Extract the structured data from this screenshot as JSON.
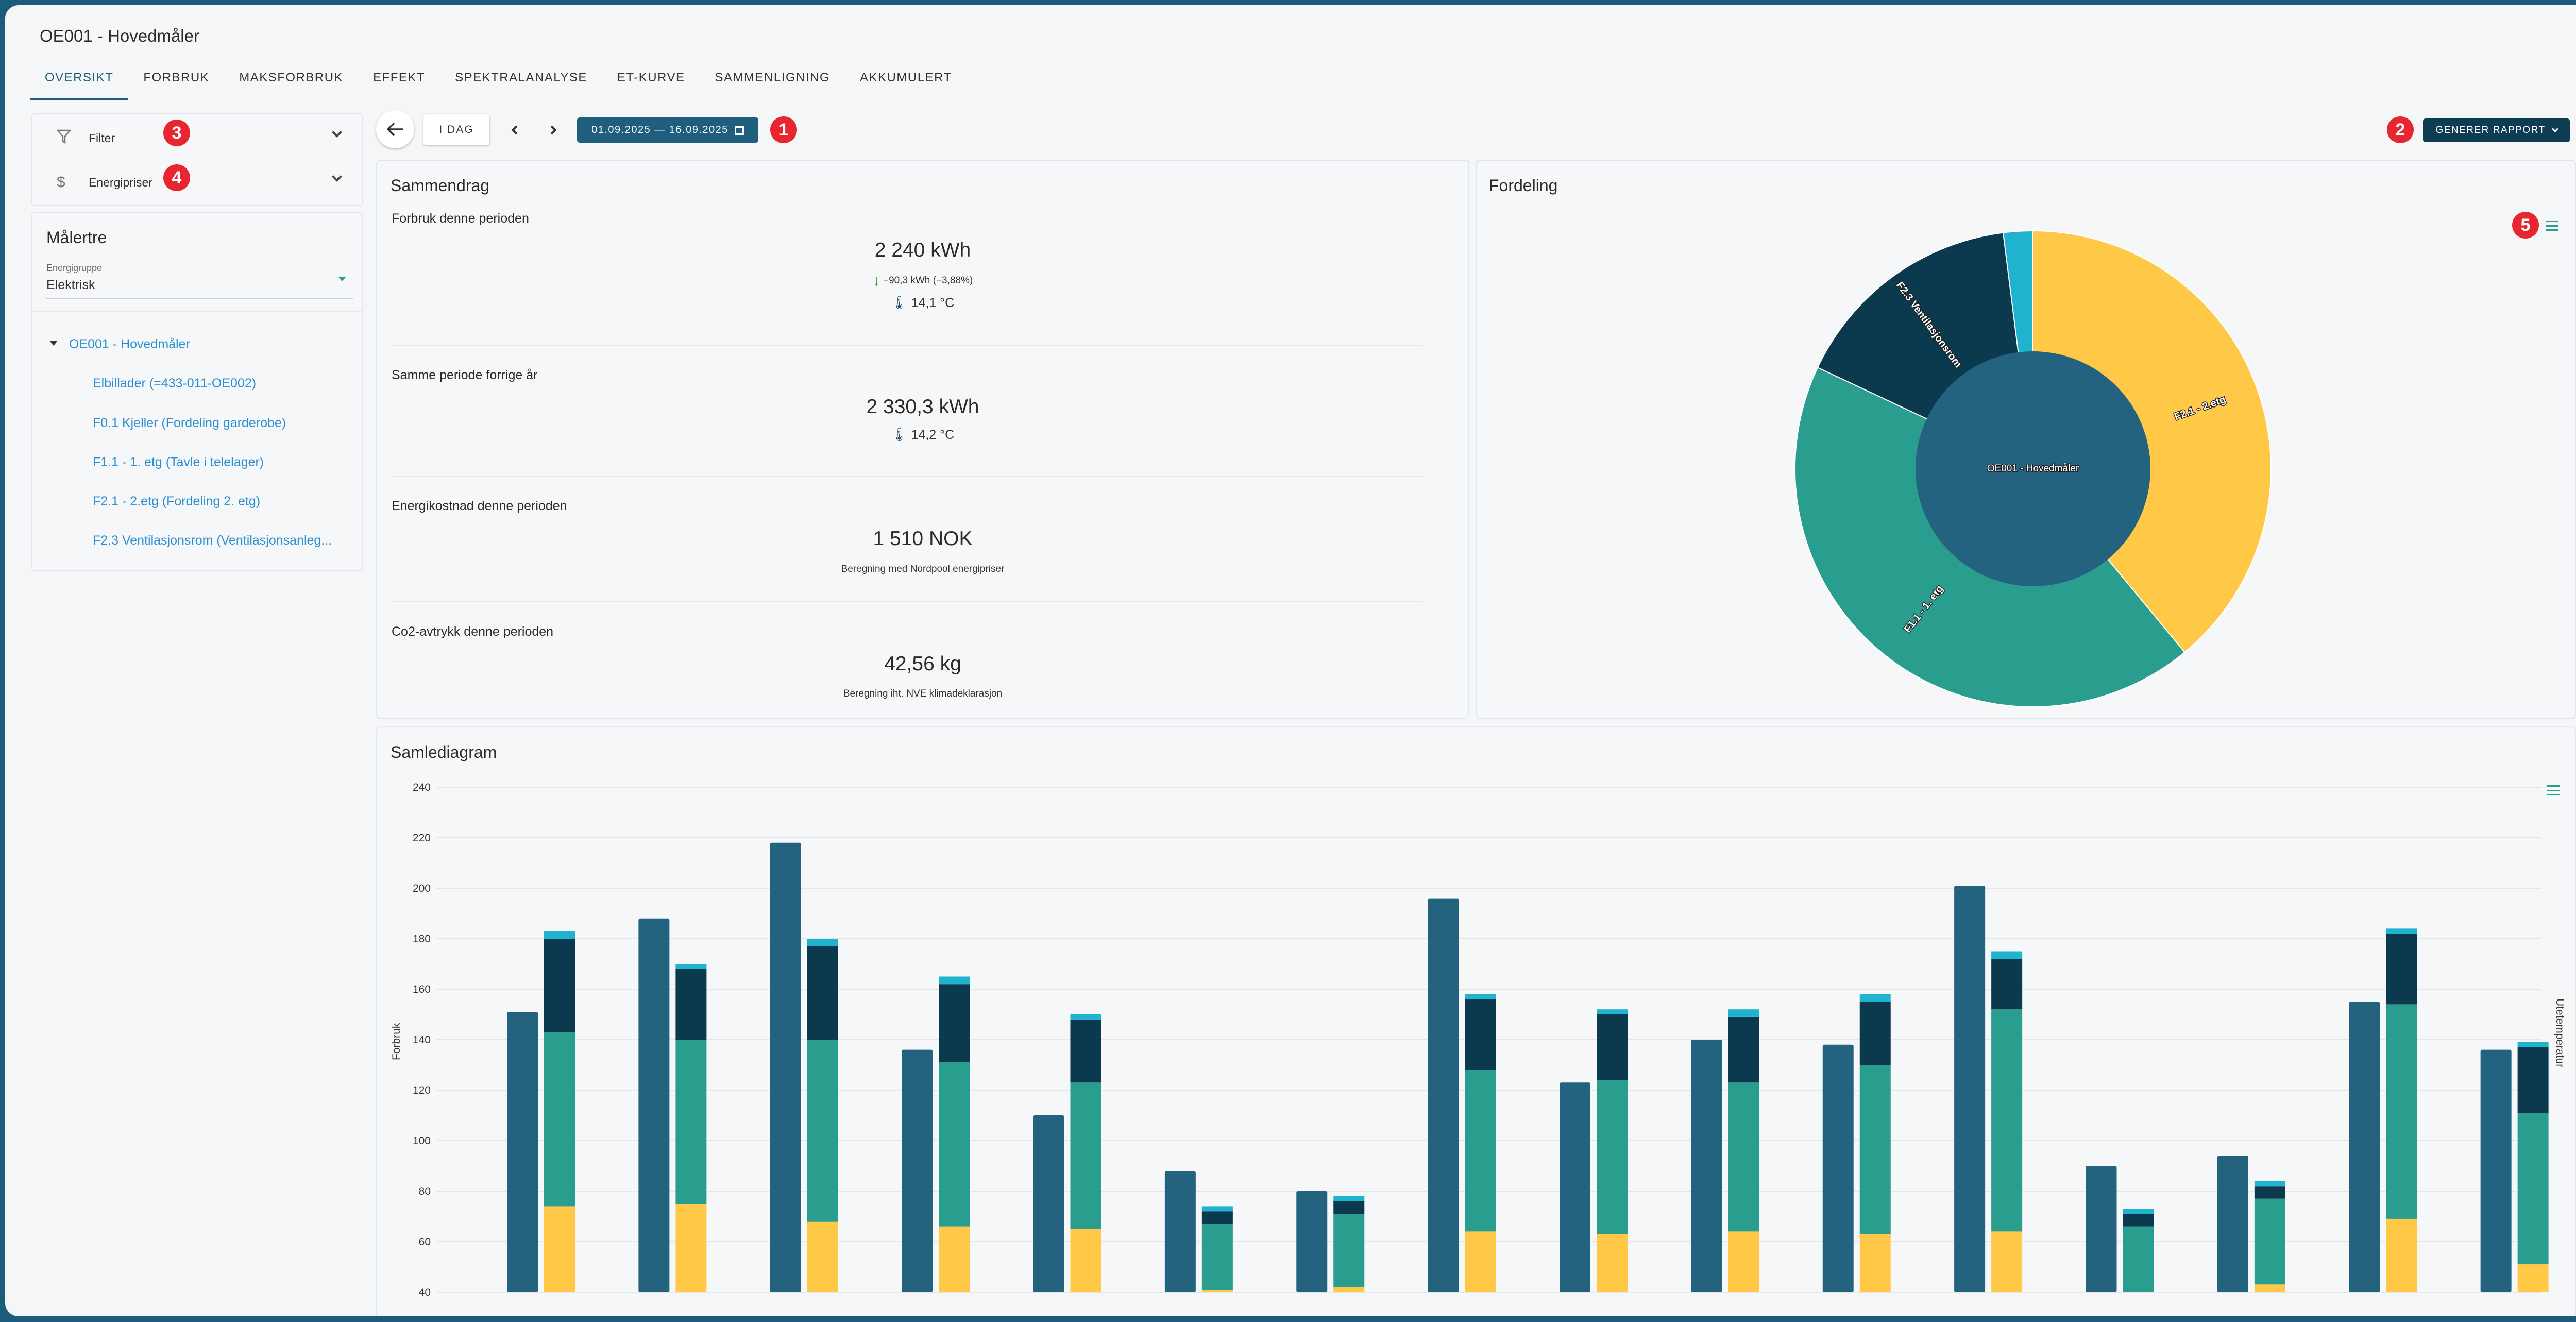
{
  "header": {
    "title": "OE001 - Hovedmåler"
  },
  "tabs": [
    "Oversikt",
    "Forbruk",
    "Maksforbruk",
    "Effekt",
    "Spektralanalyse",
    "ET-kurve",
    "Sammenligning",
    "Akkumulert"
  ],
  "sidebar": {
    "filter_label": "Filter",
    "energy_label": "Energipriser",
    "tree_title": "Målertre",
    "energy_group_label": "Energigruppe",
    "energy_group_value": "Elektrisk",
    "tree_root": "OE001 - Hovedmåler",
    "tree_children": [
      "Elbillader (=433-011-OE002)",
      "F0.1 Kjeller (Fordeling garderobe)",
      "F1.1 - 1. etg (Tavle i telelager)",
      "F2.1 - 2.etg (Fordeling 2. etg)",
      "F2.3 Ventilasjonsrom (Ventilasjonsanleg..."
    ]
  },
  "toolbar": {
    "today_label": "I DAG",
    "date_range": "01.09.2025 — 16.09.2025",
    "report_label": "GENERER RAPPORT"
  },
  "badges": [
    "1",
    "2",
    "3",
    "4",
    "5"
  ],
  "summary": {
    "title": "Sammendrag",
    "consumption_label": "Forbruk denne perioden",
    "consumption_value": "2 240 kWh",
    "consumption_change": "−90,3 kWh (−3,88%)",
    "consumption_temp": "14,1 °C",
    "last_year_label": "Samme periode forrige år",
    "last_year_value": "2 330,3 kWh",
    "last_year_temp": "14,2 °C",
    "cost_label": "Energikostnad denne perioden",
    "cost_value": "1 510 NOK",
    "cost_note": "Beregning med Nordpool energipriser",
    "co2_label": "Co2-avtrykk denne perioden",
    "co2_value": "42,56 kg",
    "co2_note": "Beregning iht. NVE klimadeklarasjon"
  },
  "distribution": {
    "title": "Fordeling"
  },
  "combined": {
    "title": "Samlediagram"
  },
  "colors": {
    "dark_blue": "#246380",
    "navy": "#0b3a4e",
    "teal": "#2a9e8e",
    "yellow": "#ffc847",
    "cyan": "#1fb3cf"
  },
  "chart_data": [
    {
      "type": "pie",
      "center_label": "OE001 - Hovedmåler",
      "slices": [
        {
          "label": "F2.1 - 2.etg",
          "value": 0.39,
          "color": "#ffc847"
        },
        {
          "label": "F1.1 - 1. etg",
          "value": 0.43,
          "color": "#2a9e8e"
        },
        {
          "label": "F2.3 Ventilasjonsrom",
          "value": 0.16,
          "color": "#0b3a4e"
        },
        {
          "label": "",
          "value": 0.02,
          "color": "#1fb3cf"
        }
      ]
    },
    {
      "type": "bar",
      "title": "Samlediagram",
      "ylabel": "Forbruk",
      "y2label": "Utetemperatur",
      "ylim": [
        40,
        240
      ],
      "yticks": [
        240,
        220,
        200,
        180,
        160,
        140,
        120,
        100,
        80,
        60,
        40
      ],
      "days": 16,
      "total": [
        151,
        188,
        218,
        136,
        110,
        88,
        80,
        196,
        123,
        140,
        138,
        201,
        90,
        94,
        155,
        136
      ],
      "stack_yellow": [
        74,
        75,
        68,
        66,
        65,
        41,
        42,
        64,
        63,
        64,
        63,
        64,
        40,
        43,
        69,
        51
      ],
      "stack_teal": [
        143,
        140,
        140,
        131,
        123,
        67,
        71,
        128,
        124,
        123,
        130,
        152,
        66,
        77,
        154,
        111
      ],
      "stack_navy": [
        180,
        168,
        177,
        162,
        148,
        72,
        76,
        156,
        150,
        149,
        155,
        172,
        71,
        82,
        182,
        137
      ],
      "stack_cyan": [
        183,
        170,
        180,
        165,
        150,
        74,
        78,
        158,
        152,
        152,
        158,
        175,
        73,
        84,
        184,
        139
      ]
    }
  ]
}
